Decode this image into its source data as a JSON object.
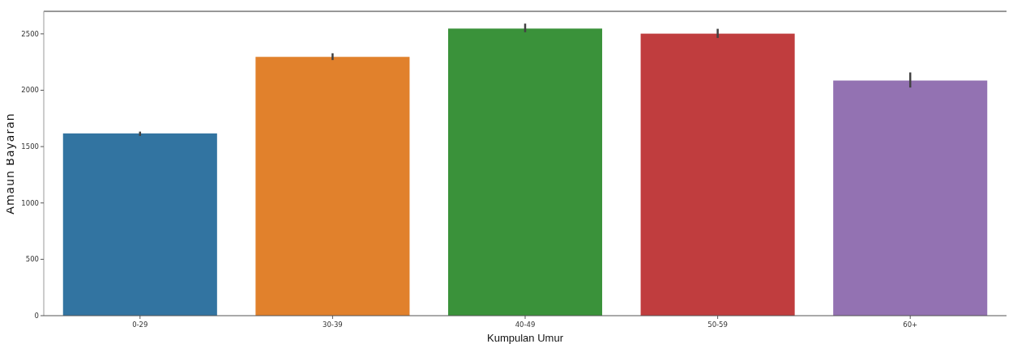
{
  "chart_data": {
    "type": "bar",
    "xlabel": "Kumpulan Umur",
    "ylabel": "Amaun Bayaran",
    "categories": [
      "0-29",
      "30-39",
      "40-49",
      "50-59",
      "60+"
    ],
    "values": [
      1617,
      2296,
      2547,
      2502,
      2086
    ],
    "colors": [
      "#3274a1",
      "#e1812c",
      "#3a923a",
      "#c03d3e",
      "#9372b2"
    ],
    "errors": [
      [
        1595,
        1633
      ],
      [
        2268,
        2328
      ],
      [
        2515,
        2591
      ],
      [
        2464,
        2545
      ],
      [
        2024,
        2158
      ]
    ],
    "ylim": [
      0,
      2700
    ],
    "yticks": [
      0,
      500,
      1000,
      1500,
      2000,
      2500
    ],
    "grid": false
  }
}
